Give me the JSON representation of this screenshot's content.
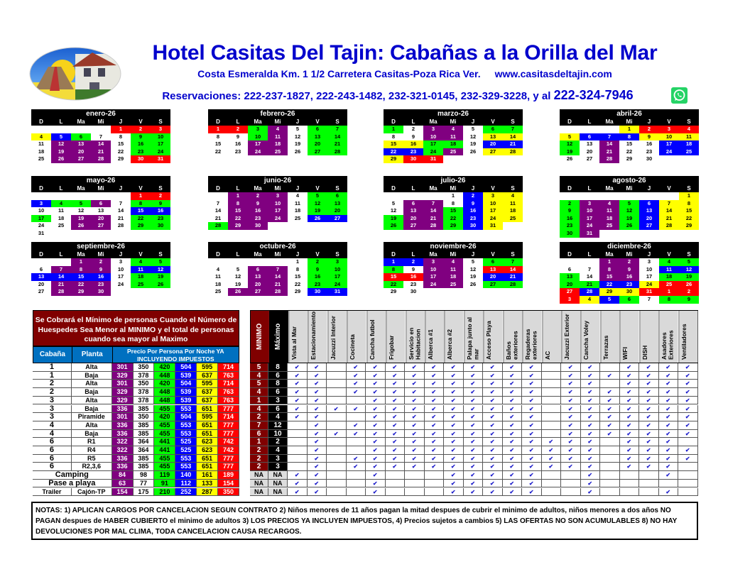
{
  "header": {
    "title": "Hotel Casitas Del Tajin: Cabañas a la Orilla del Mar",
    "address": "Costa Esmeralda Km. 1 1/2 Carretera Casitas-Poza Rica Ver.",
    "website": "www.casitasdeltajin.com",
    "reservations": "Reservaciones:  222-237-1827, 222-243-1482, 232-321-0145, 232-329-3228, y al",
    "whatsapp_number": "222-324-7946",
    "whatsapp_icon": "whatsapp-icon",
    "logo": "hotel-logo"
  },
  "colors": {
    "r": "#ff0000",
    "y": "#ffff00",
    "b": "#0000ff",
    "g": "#00ff00",
    "p": "#800080",
    "w": "#ffffff"
  },
  "weekdays": [
    "D",
    "L",
    "Ma",
    "Mi",
    "J",
    "V",
    "S"
  ],
  "months": [
    {
      "name": "enero-26",
      "weeks": [
        [
          "",
          "",
          "",
          "",
          "1r",
          "2r",
          "3r"
        ],
        [
          "4y",
          "5b",
          "6g",
          "7w",
          "8w",
          "9g",
          "10g"
        ],
        [
          "11w",
          "12p",
          "13p",
          "14p",
          "15w",
          "16g",
          "17g"
        ],
        [
          "18w",
          "19p",
          "20p",
          "21p",
          "22w",
          "23g",
          "24g"
        ],
        [
          "25w",
          "26p",
          "27p",
          "28p",
          "29w",
          "30r",
          "31r"
        ]
      ]
    },
    {
      "name": "febrero-26",
      "weeks": [
        [
          "1r",
          "2r",
          "3g",
          "4p",
          "5w",
          "6g",
          "7g"
        ],
        [
          "8w",
          "9w",
          "10g",
          "11p",
          "12w",
          "13g",
          "14g"
        ],
        [
          "15w",
          "16w",
          "17p",
          "18p",
          "19w",
          "20g",
          "21g"
        ],
        [
          "22w",
          "23w",
          "24p",
          "25p",
          "26w",
          "27g",
          "28g"
        ]
      ]
    },
    {
      "name": "marzo-26",
      "weeks": [
        [
          "1g",
          "2w",
          "3p",
          "4p",
          "5w",
          "6g",
          "7g"
        ],
        [
          "8w",
          "9w",
          "10p",
          "11p",
          "12w",
          "13y",
          "14y"
        ],
        [
          "15y",
          "16y",
          "17g",
          "18g",
          "19w",
          "20b",
          "21b"
        ],
        [
          "22b",
          "23b",
          "24g",
          "25p",
          "26w",
          "27y",
          "28y"
        ],
        [
          "29y",
          "30r",
          "31r",
          "",
          "",
          "",
          ""
        ]
      ]
    },
    {
      "name": "abril-26",
      "weeks": [
        [
          "",
          "",
          "",
          "1y",
          "2r",
          "3r",
          "4r"
        ],
        [
          "5y",
          "6b",
          "7b",
          "8b",
          "9y",
          "10y",
          "11y"
        ],
        [
          "12g",
          "13w",
          "14p",
          "15w",
          "16w",
          "17b",
          "18b"
        ],
        [
          "19g",
          "20w",
          "21p",
          "22w",
          "23w",
          "24b",
          "25b"
        ],
        [
          "26w",
          "27w",
          "28p",
          "29w",
          "30w",
          "",
          ""
        ]
      ]
    },
    {
      "name": "mayo-26",
      "weeks": [
        [
          "",
          "",
          "",
          "",
          "",
          "1r",
          "2r"
        ],
        [
          "3b",
          "4g",
          "5g",
          "6p",
          "7w",
          "8g",
          "9g"
        ],
        [
          "10w",
          "11w",
          "12w",
          "13w",
          "14w",
          "15b",
          "16b"
        ],
        [
          "17g",
          "18w",
          "19p",
          "20p",
          "21w",
          "22g",
          "23g"
        ],
        [
          "24w",
          "25w",
          "26p",
          "27p",
          "28w",
          "29g",
          "30g"
        ],
        [
          "31w",
          "",
          "",
          "",
          "",
          "",
          ""
        ]
      ]
    },
    {
      "name": "junio-26",
      "weeks": [
        [
          "",
          "1p",
          "2p",
          "3p",
          "4w",
          "5g",
          "6g"
        ],
        [
          "7w",
          "8p",
          "9p",
          "10p",
          "11w",
          "12g",
          "13g"
        ],
        [
          "14w",
          "15p",
          "16p",
          "17p",
          "18w",
          "19g",
          "20g"
        ],
        [
          "21w",
          "22p",
          "23p",
          "24p",
          "25w",
          "26b",
          "27b"
        ],
        [
          "28g",
          "29p",
          "30p",
          "",
          "",
          "",
          ""
        ]
      ]
    },
    {
      "name": "julio-26",
      "weeks": [
        [
          "",
          "",
          "",
          "1w",
          "2b",
          "3y",
          "4y"
        ],
        [
          "5w",
          "6p",
          "7p",
          "8w",
          "9b",
          "10y",
          "11y"
        ],
        [
          "12w",
          "13p",
          "14p",
          "15g",
          "16b",
          "17y",
          "18y"
        ],
        [
          "19g",
          "20p",
          "21p",
          "22g",
          "23b",
          "24y",
          "25y"
        ],
        [
          "26g",
          "27p",
          "28p",
          "29g",
          "30b",
          "31y",
          ""
        ]
      ]
    },
    {
      "name": "agosto-26",
      "weeks": [
        [
          "",
          "",
          "",
          "",
          "",
          "",
          "1y"
        ],
        [
          "2g",
          "3p",
          "4p",
          "5g",
          "6b",
          "7y",
          "8y"
        ],
        [
          "9g",
          "10p",
          "11p",
          "12g",
          "13b",
          "14y",
          "15y"
        ],
        [
          "16g",
          "17p",
          "18p",
          "19g",
          "20b",
          "21y",
          "22y"
        ],
        [
          "23g",
          "24p",
          "25p",
          "26g",
          "27b",
          "28y",
          "29y"
        ],
        [
          "30g",
          "31p",
          "",
          "",
          "",
          "",
          ""
        ]
      ]
    },
    {
      "name": "septiembre-26",
      "weeks": [
        [
          "",
          "",
          "1p",
          "2p",
          "3w",
          "4g",
          "5g"
        ],
        [
          "6w",
          "7p",
          "8p",
          "9p",
          "10w",
          "11b",
          "12b"
        ],
        [
          "13b",
          "14b",
          "15b",
          "16b",
          "17w",
          "18g",
          "19g"
        ],
        [
          "20w",
          "21p",
          "22p",
          "23p",
          "24w",
          "25g",
          "26g"
        ],
        [
          "27w",
          "28p",
          "29p",
          "30p",
          "",
          "",
          ""
        ]
      ]
    },
    {
      "name": "octubre-26",
      "weeks": [
        [
          "",
          "",
          "",
          "",
          "1w",
          "2g",
          "3g"
        ],
        [
          "4w",
          "5w",
          "6p",
          "7p",
          "8w",
          "9g",
          "10g"
        ],
        [
          "11w",
          "12w",
          "13p",
          "14p",
          "15w",
          "16g",
          "17g"
        ],
        [
          "18w",
          "19w",
          "20p",
          "21p",
          "22w",
          "23g",
          "24g"
        ],
        [
          "25w",
          "26p",
          "27p",
          "28p",
          "29w",
          "30b",
          "31b"
        ]
      ]
    },
    {
      "name": "noviembre-26",
      "weeks": [
        [
          "1b",
          "2b",
          "3p",
          "4p",
          "5w",
          "6g",
          "7g"
        ],
        [
          "8g",
          "9w",
          "10p",
          "11p",
          "12w",
          "13r",
          "14r"
        ],
        [
          "15r",
          "16r",
          "17p",
          "18p",
          "19w",
          "20b",
          "21b"
        ],
        [
          "22g",
          "23w",
          "24p",
          "25p",
          "26w",
          "27g",
          "28g"
        ],
        [
          "29w",
          "30w",
          "",
          "",
          "",
          "",
          ""
        ]
      ]
    },
    {
      "name": "diciembre-26",
      "weeks": [
        [
          "",
          "",
          "1p",
          "2p",
          "3w",
          "4g",
          "5g"
        ],
        [
          "6w",
          "7w",
          "8p",
          "9p",
          "10w",
          "11b",
          "12b"
        ],
        [
          "13g",
          "14w",
          "15p",
          "16p",
          "17w",
          "18g",
          "19g"
        ],
        [
          "20g",
          "21g",
          "22b",
          "23b",
          "24y",
          "25r",
          "26r"
        ],
        [
          "27r",
          "28b",
          "29y",
          "30y",
          "31r",
          "1r",
          "2r"
        ],
        [
          "3r",
          "4y",
          "5b",
          "6g",
          "7w",
          "8g",
          "9g"
        ]
      ]
    }
  ],
  "rates": {
    "notice": "Se Cobrará el Mínimo de personas Cuando el Número de Huespedes Sea Menor al MINIMO y el total de personas cuando sea mayor al Maximo",
    "col_cabana": "Cabaña",
    "col_planta": "Planta",
    "col_price": "Precio Por Persona Por Noche YA INCLUYENDO IMPUESTOS",
    "price_colors": [
      "p",
      "w",
      "g",
      "b",
      "y",
      "r"
    ],
    "col_min": "MINIMO",
    "col_max": "Máximo",
    "amenities": [
      "Vista al Mar",
      "Estacionamiento",
      "Jacuzzi Interior",
      "Cocineta",
      "Cancha futbol",
      "Frigobar",
      "Servicio en Habitacion",
      "Alberca #1",
      "Alberca #2",
      "Palapa junto al mar",
      "Acceso Playa",
      "Baños exteriores",
      "Regaderas exteriores",
      "AC",
      "Jacuzzi Exterior",
      "Cancha Voley",
      "Terrazas",
      "WIFI",
      "DISH",
      "Asadores Exteriores",
      "Ventiladores"
    ],
    "check": "✔",
    "rows": [
      {
        "cabana": "1",
        "planta": "Alta",
        "prices": [
          "301",
          "350",
          "420",
          "504",
          "595",
          "714"
        ],
        "min": "5",
        "max": "8",
        "am": "110111111111101101111"
      },
      {
        "cabana": "1",
        "planta": "Baja",
        "prices": [
          "329",
          "378",
          "448",
          "539",
          "637",
          "763"
        ],
        "min": "4",
        "max": "6",
        "am": "110111111111101111111"
      },
      {
        "cabana": "2",
        "planta": "Alta",
        "prices": [
          "301",
          "350",
          "420",
          "504",
          "595",
          "714"
        ],
        "min": "5",
        "max": "8",
        "am": "110111111111101101111"
      },
      {
        "cabana": "2",
        "planta": "Baja",
        "prices": [
          "329",
          "378",
          "448",
          "539",
          "637",
          "763"
        ],
        "min": "4",
        "max": "6",
        "am": "110111111111101111111"
      },
      {
        "cabana": "3",
        "planta": "Alta",
        "prices": [
          "329",
          "378",
          "448",
          "539",
          "637",
          "763"
        ],
        "min": "1",
        "max": "3",
        "am": "110011111111101111111"
      },
      {
        "cabana": "3",
        "planta": "Baja",
        "prices": [
          "336",
          "385",
          "455",
          "553",
          "651",
          "777"
        ],
        "min": "4",
        "max": "6",
        "am": "111111111111101111111"
      },
      {
        "cabana": "3",
        "planta": "Piramide",
        "prices": [
          "301",
          "350",
          "420",
          "504",
          "595",
          "714"
        ],
        "min": "2",
        "max": "4",
        "am": "110011111111101111111"
      },
      {
        "cabana": "4",
        "planta": "Alta",
        "prices": [
          "336",
          "385",
          "455",
          "553",
          "651",
          "777"
        ],
        "min": "7",
        "max": "12",
        "am": "010111111111101111111"
      },
      {
        "cabana": "4",
        "planta": "Baja",
        "prices": [
          "336",
          "385",
          "455",
          "553",
          "651",
          "777"
        ],
        "min": "6",
        "max": "10",
        "am": "011111111111101111111"
      },
      {
        "cabana": "6",
        "planta": "R1",
        "prices": [
          "322",
          "364",
          "441",
          "525",
          "623",
          "742"
        ],
        "min": "1",
        "max": "2",
        "am": "010011111111111101110"
      },
      {
        "cabana": "6",
        "planta": "R4",
        "prices": [
          "322",
          "364",
          "441",
          "525",
          "623",
          "742"
        ],
        "min": "2",
        "max": "4",
        "am": "010011111111111101111"
      },
      {
        "cabana": "6",
        "planta": "R5",
        "prices": [
          "336",
          "385",
          "455",
          "553",
          "651",
          "777"
        ],
        "min": "2",
        "max": "3",
        "am": "010111111111111101111"
      },
      {
        "cabana": "6",
        "planta": "R2,3,6",
        "prices": [
          "336",
          "385",
          "455",
          "553",
          "651",
          "777"
        ],
        "min": "2",
        "max": "3",
        "am": "010111111111111101110"
      },
      {
        "cabana": "Camping",
        "planta": "",
        "prices": [
          "84",
          "98",
          "119",
          "140",
          "161",
          "189"
        ],
        "min": "NA",
        "max": "NA",
        "am": "110010001111100100010"
      },
      {
        "cabana": "Pase a playa",
        "planta": "",
        "prices": [
          "63",
          "77",
          "91",
          "112",
          "133",
          "154"
        ],
        "min": "NA",
        "max": "NA",
        "am": "110010001111100100000"
      },
      {
        "cabana": "Trailer",
        "planta": "Cajón-TP",
        "prices": [
          "154",
          "175",
          "210",
          "252",
          "287",
          "350"
        ],
        "min": "NA",
        "max": "NA",
        "am": "110010001111100100010"
      }
    ]
  },
  "notes": "NOTAS: 1) APLICAN CARGOS POR CANCELACION SEGUN CONTRATO 2) Niños menores de 11 años pagan la mitad despues de cubrir el minimo de adultos, niños menores a dos años NO PAGAN despues de HABER CUBIERTO el minimo de adultos 3) LOS PRECIOS YA INCLUYEN IMPUESTOS, 4) Precios sujetos a cambios 5)  LAS OFERTAS NO SON ACUMULABLES 8) NO HAY DEVOLUCIONES POR MAL CLIMA, TODA CANCELACION CAUSA RECARGOS."
}
